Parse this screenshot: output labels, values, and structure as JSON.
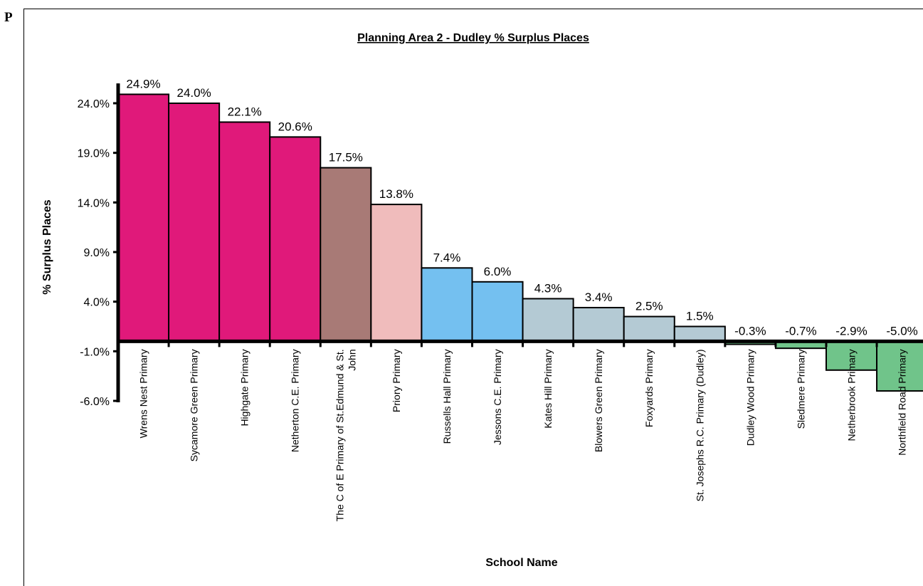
{
  "page": {
    "corner_letter": "P"
  },
  "chart_data": {
    "type": "bar",
    "title": "Planning Area 2 - Dudley % Surplus Places",
    "xlabel": "School Name",
    "ylabel": "% Surplus Places",
    "ylim": [
      -6.0,
      26.0
    ],
    "yticks": [
      24.0,
      19.0,
      14.0,
      9.0,
      4.0,
      -1.0,
      -6.0
    ],
    "ytick_labels": [
      "24.0%",
      "19.0%",
      "14.0%",
      "9.0%",
      "4.0%",
      "-1.0%",
      "-6.0%"
    ],
    "grid": false,
    "legend": "none",
    "categories": [
      [
        "Wrens Nest Primary"
      ],
      [
        "Sycamore Green Primary"
      ],
      [
        "Highgate Primary"
      ],
      [
        "Netherton C.E. Primary"
      ],
      [
        "The C of E Primary of St.Edmund & St.",
        "John"
      ],
      [
        "Priory Primary"
      ],
      [
        "Russells Hall Primary"
      ],
      [
        "Jessons C.E. Primary"
      ],
      [
        "Kates Hill Primary"
      ],
      [
        "Blowers Green Primary"
      ],
      [
        "Foxyards Primary"
      ],
      [
        "St. Josephs R.C. Primary (Dudley)"
      ],
      [
        "Dudley Wood Primary"
      ],
      [
        "Sledmere Primary"
      ],
      [
        "Netherbrook Primary"
      ],
      [
        "Northfield Road Primary"
      ]
    ],
    "values": [
      24.9,
      24.0,
      22.1,
      20.6,
      17.5,
      13.8,
      7.4,
      6.0,
      4.3,
      3.4,
      2.5,
      1.5,
      -0.3,
      -0.7,
      -2.9,
      -5.0
    ],
    "value_labels": [
      "24.9%",
      "24.0%",
      "22.1%",
      "20.6%",
      "17.5%",
      "13.8%",
      "7.4%",
      "6.0%",
      "4.3%",
      "3.4%",
      "2.5%",
      "1.5%",
      "-0.3%",
      "-0.7%",
      "-2.9%",
      "-5.0%"
    ],
    "bar_colors": [
      "#e0197a",
      "#e0197a",
      "#e0197a",
      "#e0197a",
      "#a87a76",
      "#f0bcbc",
      "#74c0f0",
      "#74c0f0",
      "#b4cad4",
      "#b4cad4",
      "#b4cad4",
      "#b4cad4",
      "#70c48a",
      "#70c48a",
      "#70c48a",
      "#70c48a"
    ]
  }
}
